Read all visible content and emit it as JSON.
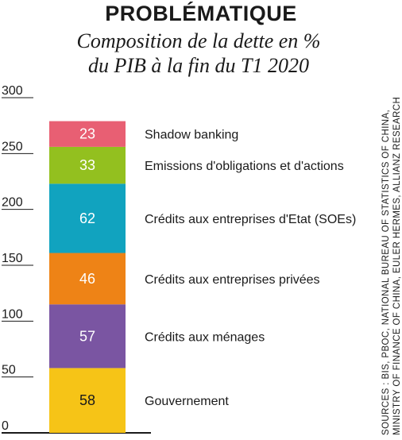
{
  "header": {
    "title": "PROBLÉMATIQUE",
    "subtitle_line1": "Composition de la dette en %",
    "subtitle_line2": "du PIB à la fin du T1 2020"
  },
  "sources": {
    "line1": "SOURCES : BIS, PBOC, NATIONAL BUREAU OF STATISTICS OF CHINA,",
    "line2": "MINISTRY OF FINANCE OF CHINA, EULER HERMES, ALLIANZ RESEARCH"
  },
  "chart_data": {
    "type": "bar",
    "stacked": true,
    "ylim": [
      0,
      300
    ],
    "yticks": [
      0,
      50,
      100,
      150,
      200,
      250,
      300
    ],
    "grid": false,
    "series": [
      {
        "name": "Gouvernement",
        "value": 58,
        "color": "#f6c417",
        "label_color": "dark"
      },
      {
        "name": "Crédits aux ménages",
        "value": 57,
        "color": "#7a55a2",
        "label_color": "light"
      },
      {
        "name": "Crédits aux entreprises privées",
        "value": 46,
        "color": "#ee8316",
        "label_color": "light"
      },
      {
        "name": "Crédits aux entreprises d'Etat (SOEs)",
        "value": 62,
        "color": "#11a3bf",
        "label_color": "light"
      },
      {
        "name": "Emissions d'obligations et d'actions",
        "value": 33,
        "color": "#93c01f",
        "label_color": "light"
      },
      {
        "name": "Shadow banking",
        "value": 23,
        "color": "#e85f73",
        "label_color": "light"
      }
    ]
  }
}
